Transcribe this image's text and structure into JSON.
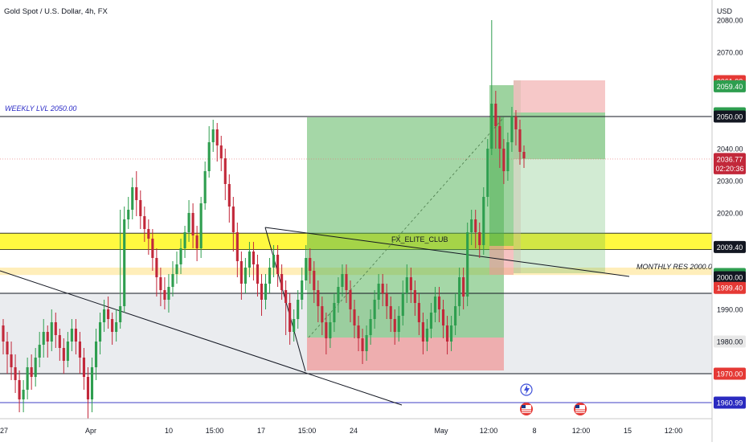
{
  "header": {
    "title": "Gold Spot / U.S. Dollar, 4h, FX"
  },
  "currency_label": "USD",
  "colors": {
    "up": "#26a69a",
    "down": "#b22833",
    "candle_up": "#2e9e4f",
    "candle_down": "#c2283a",
    "profit_zone": "#4caf50",
    "loss_zone": "#ef9a9a",
    "yellow_zone": "#fff700",
    "orange_zone": "#ffe082",
    "grey_zone": "#d1d4dc",
    "blue_line": "#3f3fc4",
    "weekly_text": "#2b2bc7"
  },
  "chart_data": {
    "type": "candlestick",
    "title": "Gold Spot / U.S. Dollar, 4h, FX",
    "currency": "USD",
    "ylim": [
      1954,
      2083
    ],
    "y_ticks": [
      2080,
      2070,
      2060,
      2050,
      2040,
      2030,
      2020,
      2010,
      2000,
      1990,
      1980,
      1970,
      1960
    ],
    "y_tick_labels": [
      "2080.00",
      "2070.00",
      "2060.00",
      "2050.00",
      "2040.00",
      "2030.00",
      "2020.00",
      "2010.00",
      "2000.00",
      "1990.00",
      "1980.00",
      "1970.00",
      "1960.00"
    ],
    "x_tick_labels": [
      "27",
      "Apr",
      "10",
      "15:00",
      "17",
      "15:00",
      "24",
      "May",
      "12:00",
      "8",
      "12:00",
      "15",
      "12:00"
    ],
    "price_badges": [
      {
        "label": "2061.00",
        "value": 2061.0,
        "color": "#e53935"
      },
      {
        "label": "2059.40",
        "value": 2059.4,
        "color": "#2e9e4f"
      },
      {
        "label": "2051.00",
        "value": 2051.0,
        "color": "#2e9e4f"
      },
      {
        "label": "2050.00",
        "value": 2050.3,
        "color": "#2e9e4f"
      },
      {
        "label": "2050.00",
        "value": 2050.0,
        "color": "#131722"
      },
      {
        "label": "2036.77",
        "value": 2036.77,
        "color": "#c2283a"
      },
      {
        "label": "02:20:36",
        "value": 2033.9,
        "color": "#c2283a"
      },
      {
        "label": "2009.40",
        "value": 2009.4,
        "color": "#131722"
      },
      {
        "label": "2001.00",
        "value": 2001.0,
        "color": "#2e9e4f"
      },
      {
        "label": "2000.00",
        "value": 2000.0,
        "color": "#131722"
      },
      {
        "label": "1999.40",
        "value": 1996.7,
        "color": "#e53935"
      },
      {
        "label": "1980.00",
        "value": 1980.0,
        "color": "#e8e8e8"
      },
      {
        "label": "1970.00",
        "value": 1970.0,
        "color": "#e53935"
      },
      {
        "label": "1960.99",
        "value": 1960.99,
        "color": "#2a2ac0"
      }
    ],
    "horizontal_lines": [
      {
        "value": 2050.0
      },
      {
        "value": 1995.0
      },
      {
        "value": 1970.0
      },
      {
        "value": 1961.0
      },
      {
        "value": 2036.77
      }
    ],
    "zones": [
      {
        "name": "yellow",
        "from": 2008.6,
        "to": 2013.7
      },
      {
        "name": "orange",
        "from": 2000.7,
        "to": 2003.0
      },
      {
        "name": "grey",
        "from": 1970.0,
        "to": 1995.0
      }
    ],
    "annotations": [
      {
        "text": "WEEKLY LVL 2050.00"
      },
      {
        "text": "MONTHLY RES 2000.00"
      },
      {
        "text": "FX_ELITE_CLUB"
      }
    ],
    "candles": [
      [
        1985,
        1980,
        1987,
        1976
      ],
      [
        1980,
        1976,
        1983,
        1970
      ],
      [
        1976,
        1972,
        1980,
        1968
      ],
      [
        1972,
        1968,
        1976,
        1964
      ],
      [
        1968,
        1962,
        1971,
        1958
      ],
      [
        1962,
        1965,
        1968,
        1958
      ],
      [
        1965,
        1972,
        1975,
        1962
      ],
      [
        1972,
        1969,
        1976,
        1965
      ],
      [
        1969,
        1975,
        1978,
        1966
      ],
      [
        1975,
        1979,
        1983,
        1972
      ],
      [
        1979,
        1983,
        1987,
        1975
      ],
      [
        1983,
        1980,
        1985,
        1975
      ],
      [
        1980,
        1986,
        1990,
        1977
      ],
      [
        1986,
        1982,
        1989,
        1978
      ],
      [
        1982,
        1978,
        1984,
        1974
      ],
      [
        1978,
        1974,
        1981,
        1970
      ],
      [
        1974,
        1980,
        1983,
        1972
      ],
      [
        1980,
        1984,
        1987,
        1977
      ],
      [
        1984,
        1980,
        1987,
        1976
      ],
      [
        1980,
        1975,
        1983,
        1970
      ],
      [
        1975,
        1969,
        1978,
        1965
      ],
      [
        1969,
        1962,
        1972,
        1956
      ],
      [
        1962,
        1972,
        1975,
        1958
      ],
      [
        1972,
        1980,
        1984,
        1968
      ],
      [
        1980,
        1986,
        1989,
        1976
      ],
      [
        1986,
        1990,
        1993,
        1983
      ],
      [
        1990,
        1987,
        1994,
        1984
      ],
      [
        1987,
        1983,
        1989,
        1979
      ],
      [
        1983,
        1986,
        1990,
        1980
      ],
      [
        1986,
        1991,
        2021,
        1984
      ],
      [
        1991,
        2018,
        2022,
        1989
      ],
      [
        2018,
        2021,
        2025,
        2015
      ],
      [
        2021,
        2028,
        2031,
        2018
      ],
      [
        2028,
        2024,
        2033,
        2019
      ],
      [
        2024,
        2019,
        2027,
        2015
      ],
      [
        2019,
        2015,
        2022,
        2011
      ],
      [
        2015,
        2012,
        2018,
        2007
      ],
      [
        2012,
        2006,
        2015,
        2002
      ],
      [
        2006,
        2000,
        2009,
        1994
      ],
      [
        2000,
        1996,
        2003,
        1991
      ],
      [
        1996,
        1993,
        2000,
        1990
      ],
      [
        1993,
        1997,
        2001,
        1989
      ],
      [
        1997,
        2001,
        2005,
        1994
      ],
      [
        2001,
        2004,
        2008,
        1998
      ],
      [
        2004,
        2009,
        2012,
        2001
      ],
      [
        2009,
        2014,
        2016,
        2006
      ],
      [
        2014,
        2020,
        2024,
        2011
      ],
      [
        2020,
        2013,
        2023,
        2009
      ],
      [
        2013,
        2009,
        2016,
        2005
      ],
      [
        2009,
        2023,
        2025,
        2006
      ],
      [
        2023,
        2033,
        2036,
        2021
      ],
      [
        2033,
        2042,
        2047,
        2031
      ],
      [
        2042,
        2046,
        2049,
        2039
      ],
      [
        2046,
        2041,
        2048,
        2036
      ],
      [
        2041,
        2037,
        2044,
        2033
      ],
      [
        2037,
        2029,
        2040,
        2024
      ],
      [
        2029,
        2022,
        2032,
        2017
      ],
      [
        2022,
        2014,
        2025,
        2008
      ],
      [
        2014,
        2005,
        2017,
        2000
      ],
      [
        2005,
        1998,
        2008,
        1993
      ],
      [
        1998,
        2003,
        2006,
        1995
      ],
      [
        2003,
        2008,
        2011,
        2000
      ],
      [
        2008,
        2004,
        2011,
        1999
      ],
      [
        2004,
        1998,
        2007,
        1994
      ],
      [
        1998,
        1993,
        2001,
        1988
      ],
      [
        1993,
        1998,
        2001,
        1990
      ],
      [
        1998,
        2003,
        2006,
        1995
      ],
      [
        2003,
        2007,
        2010,
        2000
      ],
      [
        2007,
        2001,
        2010,
        1997
      ],
      [
        2001,
        1996,
        2004,
        1993
      ],
      [
        1996,
        1992,
        1999,
        1982
      ],
      [
        1992,
        1983,
        1995,
        1979
      ],
      [
        1983,
        1987,
        1990,
        1980
      ],
      [
        1987,
        1993,
        1996,
        1984
      ],
      [
        1993,
        1999,
        2003,
        1990
      ],
      [
        1999,
        2006,
        2010,
        1996
      ],
      [
        2006,
        2002,
        2009,
        1998
      ],
      [
        2002,
        1996,
        2005,
        1992
      ],
      [
        1996,
        1991,
        1999,
        1986
      ],
      [
        1991,
        1986,
        1994,
        1982
      ],
      [
        1986,
        1981,
        1989,
        1976
      ],
      [
        1981,
        1986,
        1989,
        1978
      ],
      [
        1986,
        1992,
        1995,
        1983
      ],
      [
        1992,
        1997,
        2000,
        1989
      ],
      [
        1997,
        2001,
        2004,
        1994
      ],
      [
        2001,
        1996,
        2004,
        1992
      ],
      [
        1996,
        1990,
        1999,
        1986
      ],
      [
        1990,
        1985,
        1993,
        1981
      ],
      [
        1985,
        1981,
        1988,
        1977
      ],
      [
        1981,
        1977,
        1984,
        1973
      ],
      [
        1977,
        1982,
        1985,
        1974
      ],
      [
        1982,
        1987,
        1990,
        1979
      ],
      [
        1987,
        1993,
        1996,
        1984
      ],
      [
        1993,
        1998,
        2001,
        1990
      ],
      [
        1998,
        1995,
        2001,
        1991
      ],
      [
        1995,
        1991,
        1998,
        1987
      ],
      [
        1991,
        1987,
        1994,
        1983
      ],
      [
        1987,
        1983,
        1990,
        1979
      ],
      [
        1983,
        1988,
        1991,
        1980
      ],
      [
        1988,
        1995,
        1999,
        1985
      ],
      [
        1995,
        2000,
        2004,
        1992
      ],
      [
        2000,
        1996,
        2003,
        1992
      ],
      [
        1996,
        1992,
        1999,
        1988
      ],
      [
        1992,
        1986,
        1995,
        1982
      ],
      [
        1986,
        1980,
        1989,
        1976
      ],
      [
        1980,
        1984,
        1987,
        1977
      ],
      [
        1984,
        1989,
        1992,
        1981
      ],
      [
        1989,
        1994,
        1997,
        1986
      ],
      [
        1994,
        1990,
        1997,
        1986
      ],
      [
        1990,
        1985,
        1993,
        1981
      ],
      [
        1985,
        1980,
        1988,
        1976
      ],
      [
        1980,
        1985,
        1988,
        1977
      ],
      [
        1985,
        1991,
        1995,
        1982
      ],
      [
        1991,
        2000,
        2003,
        1988
      ],
      [
        2000,
        1994,
        2003,
        1990
      ],
      [
        1994,
        2014,
        2017,
        1991
      ],
      [
        2014,
        2018,
        2021,
        2010
      ],
      [
        2018,
        2014,
        2021,
        2009
      ],
      [
        2014,
        2010,
        2017,
        2006
      ],
      [
        2010,
        2025,
        2028,
        2007
      ],
      [
        2025,
        2040,
        2043,
        2022
      ],
      [
        2040,
        2054,
        2080,
        2038
      ],
      [
        2054,
        2047,
        2058,
        2040
      ],
      [
        2047,
        2040,
        2050,
        2034
      ],
      [
        2040,
        2033,
        2043,
        2029
      ],
      [
        2033,
        2042,
        2045,
        2030
      ],
      [
        2042,
        2050,
        2053,
        2039
      ],
      [
        2050,
        2046,
        2052,
        2041
      ],
      [
        2046,
        2039,
        2049,
        2035
      ],
      [
        2039,
        2037,
        2041,
        2034
      ]
    ]
  }
}
